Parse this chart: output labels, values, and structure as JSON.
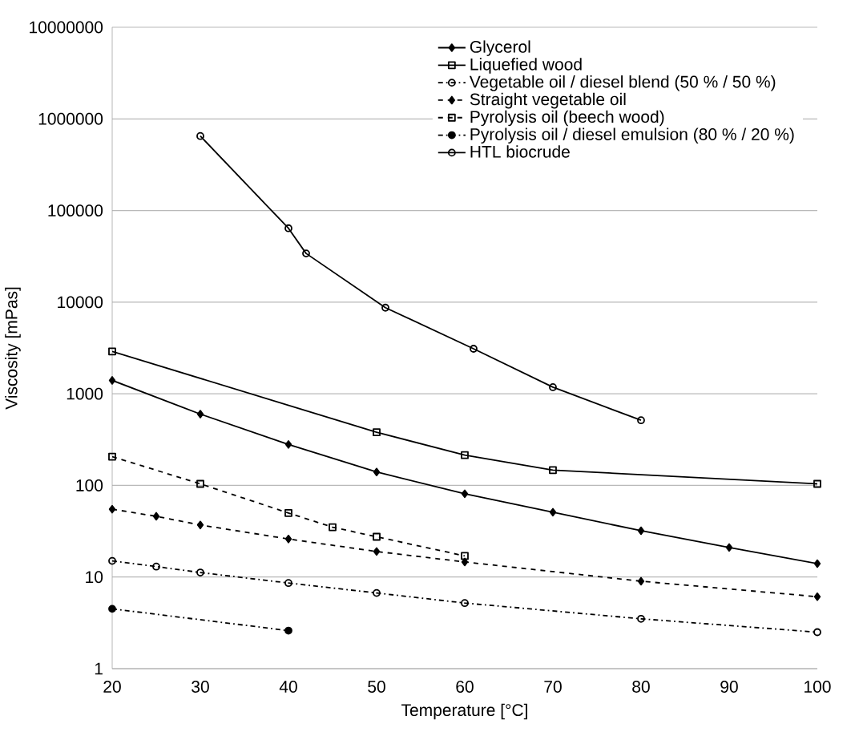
{
  "chart_data": {
    "type": "line",
    "xlabel": "Temperature [°C]",
    "ylabel": "Viscosity [mPas]",
    "log": "y",
    "xlim": [
      20,
      100
    ],
    "xticks": [
      20,
      30,
      40,
      50,
      60,
      70,
      80,
      90,
      100
    ],
    "ylim": [
      1,
      10000000
    ],
    "yticks": [
      1,
      10,
      100,
      1000,
      10000,
      100000,
      1000000,
      10000000
    ],
    "grid": "y",
    "legend": "top right",
    "series": [
      {
        "name": "Glycerol",
        "color": "#000000",
        "marker": "diamond",
        "line_style": "solid",
        "x": [
          20,
          30,
          40,
          50,
          60,
          70,
          80,
          90,
          100
        ],
        "values": [
          1400,
          600,
          280,
          140,
          81,
          51,
          32,
          21,
          14
        ]
      },
      {
        "name": "Liquefied wood",
        "color": "#000000",
        "marker": "square",
        "line_style": "solid",
        "x": [
          20,
          50,
          60,
          70,
          100
        ],
        "values": [
          2900,
          380,
          214,
          147,
          104
        ]
      },
      {
        "name": "Vegetable oil / diesel blend (50 % / 50 %)",
        "color": "#000000",
        "marker": "circle",
        "line_style": "dashdot",
        "x": [
          20,
          25,
          30,
          40,
          50,
          60,
          80,
          100
        ],
        "values": [
          15,
          13,
          11.2,
          8.6,
          6.7,
          5.2,
          3.5,
          2.5
        ]
      },
      {
        "name": "Straight vegetable oil",
        "color": "#000000",
        "marker": "diamond",
        "line_style": "dashed",
        "x": [
          20,
          25,
          30,
          40,
          50,
          60,
          80,
          100
        ],
        "values": [
          55,
          46,
          37,
          26,
          19,
          14.6,
          9,
          6.1
        ]
      },
      {
        "name": "Pyrolysis oil (beech wood)",
        "color": "#000000",
        "marker": "square",
        "line_style": "dashed",
        "x": [
          20,
          30,
          40,
          45,
          50,
          60
        ],
        "values": [
          206,
          104,
          50,
          35,
          27.5,
          17
        ]
      },
      {
        "name": "Pyrolysis oil / diesel emulsion (80 % / 20 %)",
        "color": "#000000",
        "marker": "filled circle",
        "line_style": "dashdot",
        "x": [
          20,
          40
        ],
        "values": [
          4.5,
          2.6
        ]
      },
      {
        "name": "HTL biocrude",
        "color": "#000000",
        "marker": "circle",
        "line_style": "solid",
        "x": [
          30,
          40,
          42,
          51,
          61,
          70,
          80
        ],
        "values": [
          650000,
          64000,
          34000,
          8700,
          3100,
          1180,
          514
        ]
      }
    ]
  }
}
